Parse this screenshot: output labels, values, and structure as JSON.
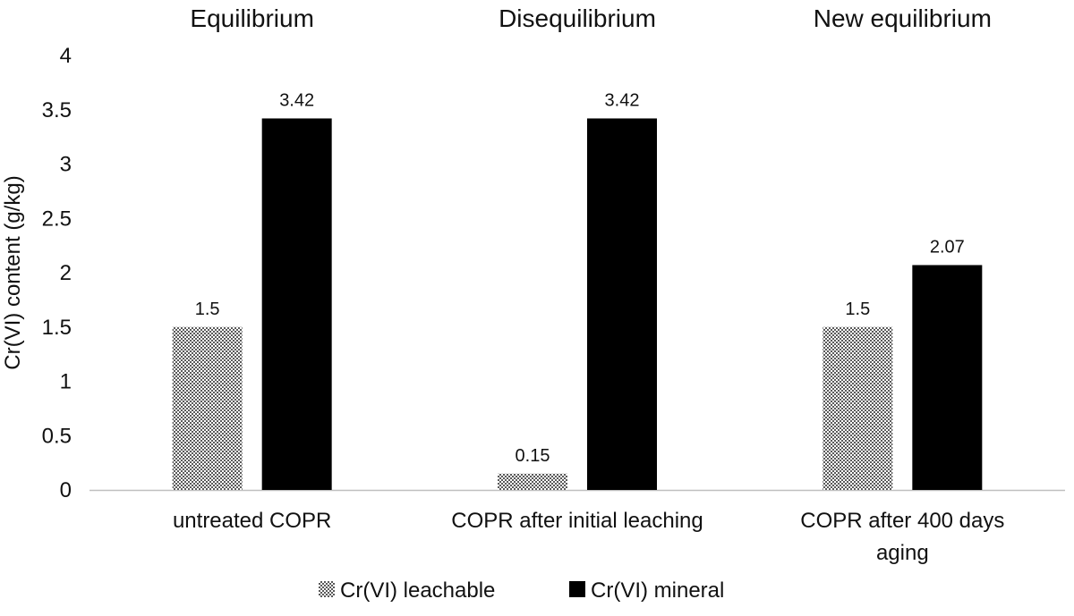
{
  "chart_data": {
    "type": "bar",
    "categories": [
      [
        "untreated COPR"
      ],
      [
        "COPR after initial leaching"
      ],
      [
        "COPR after 400 days",
        "aging"
      ]
    ],
    "group_headers": [
      "Equilibrium",
      "Disequilibrium",
      "New equilibrium"
    ],
    "series": [
      {
        "name": "Cr(VI) leachable",
        "values": [
          1.5,
          0.15,
          1.5
        ],
        "pattern": "dotted",
        "color": "#7a7a7a"
      },
      {
        "name": "Cr(VI) mineral",
        "values": [
          3.42,
          3.42,
          2.07
        ],
        "pattern": "solid",
        "color": "#000000"
      }
    ],
    "data_labels": [
      [
        "1.5",
        "0.15",
        "1.5"
      ],
      [
        "3.42",
        "3.42",
        "2.07"
      ]
    ],
    "ylabel": "Cr(VI) content (g/kg)",
    "yticks": [
      "0",
      "0.5",
      "1",
      "1.5",
      "2",
      "2.5",
      "3",
      "3.5",
      "4"
    ],
    "ylim": [
      0,
      4
    ],
    "grid": false,
    "legend_position": "bottom"
  }
}
